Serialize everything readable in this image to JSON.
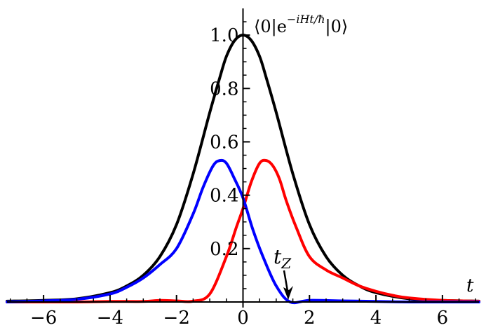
{
  "chart_data": {
    "type": "line",
    "xlabel": "t",
    "ylabel": {
      "prefix": "⟨0|e",
      "exponent": "−iHt/ħ",
      "suffix": "|0⟩"
    },
    "xlim": [
      -7.1,
      7.1
    ],
    "ylim": [
      0.0,
      1.1
    ],
    "x_ticks": [
      -6,
      -4,
      -2,
      0,
      2,
      4,
      6
    ],
    "x_tick_labels": [
      "−6",
      "−4",
      "−2",
      "0",
      "2",
      "4",
      "6"
    ],
    "y_ticks": [
      0.2,
      0.4,
      0.6,
      0.8,
      1.0
    ],
    "y_tick_labels": [
      "0.2",
      "0.4",
      "0.6",
      "0.8",
      "1.0"
    ],
    "annotation": {
      "text": "t",
      "subscript": "Z",
      "x": 1.42,
      "y": 0.0
    },
    "series": [
      {
        "color": "#000000",
        "x": [
          -7.1,
          -6.0,
          -5.0,
          -4.0,
          -3.5,
          -3.0,
          -2.5,
          -2.0,
          -1.5,
          -1.0,
          -0.7,
          -0.5,
          -0.25,
          0.0,
          0.25,
          0.5,
          0.7,
          1.0,
          1.5,
          2.0,
          2.5,
          3.0,
          3.5,
          4.0,
          5.0,
          6.0,
          7.1
        ],
        "y": [
          0.003,
          0.006,
          0.012,
          0.035,
          0.06,
          0.1,
          0.17,
          0.29,
          0.48,
          0.71,
          0.84,
          0.92,
          0.98,
          1.0,
          0.98,
          0.92,
          0.84,
          0.71,
          0.48,
          0.29,
          0.17,
          0.1,
          0.06,
          0.035,
          0.012,
          0.006,
          0.003
        ]
      },
      {
        "color": "#ff0000",
        "x": [
          -7.1,
          -6.0,
          -5.0,
          -4.0,
          -3.0,
          -2.5,
          -2.0,
          -1.5,
          -1.0,
          -0.5,
          -0.2,
          0.0,
          0.25,
          0.5,
          0.7,
          0.9,
          1.1,
          1.3,
          1.6,
          2.0,
          2.5,
          3.0,
          3.5,
          4.0,
          4.5,
          5.0,
          6.0,
          7.1
        ],
        "y": [
          0.0,
          0.0,
          0.0,
          0.002,
          0.002,
          0.006,
          0.004,
          0.003,
          0.03,
          0.17,
          0.28,
          0.35,
          0.45,
          0.52,
          0.53,
          0.51,
          0.46,
          0.38,
          0.28,
          0.17,
          0.12,
          0.09,
          0.06,
          0.04,
          0.025,
          0.015,
          0.006,
          0.003
        ]
      },
      {
        "color": "#0000ff",
        "x": [
          -7.1,
          -6.0,
          -5.0,
          -4.0,
          -3.5,
          -3.0,
          -2.5,
          -2.0,
          -1.5,
          -1.2,
          -0.9,
          -0.7,
          -0.5,
          -0.25,
          0.0,
          0.3,
          0.6,
          1.0,
          1.42,
          2.0,
          3.0,
          4.0,
          5.0,
          6.0,
          7.1
        ],
        "y": [
          0.0,
          0.004,
          0.01,
          0.03,
          0.055,
          0.09,
          0.14,
          0.2,
          0.33,
          0.43,
          0.51,
          0.53,
          0.52,
          0.46,
          0.39,
          0.27,
          0.17,
          0.06,
          0.0,
          0.006,
          0.004,
          0.002,
          0.0,
          0.0,
          0.0
        ]
      }
    ]
  }
}
